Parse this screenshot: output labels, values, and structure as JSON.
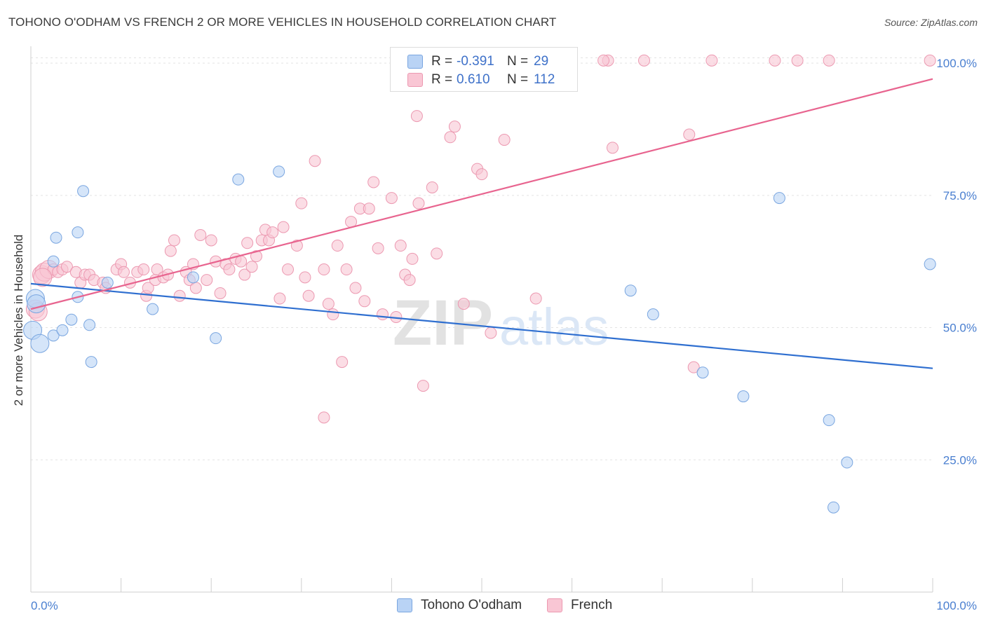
{
  "header": {
    "title": "TOHONO O'ODHAM VS FRENCH 2 OR MORE VEHICLES IN HOUSEHOLD CORRELATION CHART",
    "source": "Source: ZipAtlas.com"
  },
  "legend": {
    "rows": [
      {
        "r_key": "R =",
        "r_value": "-0.391",
        "n_key": "N =",
        "n_value": "29",
        "color": "#b9d3f5"
      },
      {
        "r_key": "R =",
        "r_value": "0.610",
        "n_key": "N =",
        "n_value": "112",
        "color": "#f9c6d4"
      }
    ]
  },
  "bottom_legend": [
    {
      "label": "Tohono O'odham",
      "color": "#b9d3f5"
    },
    {
      "label": "French",
      "color": "#f9c6d4"
    }
  ],
  "watermark": {
    "zip": "ZIP",
    "atlas": "atlas"
  },
  "chart_data": {
    "type": "scatter",
    "title": "TOHONO O'ODHAM VS FRENCH 2 OR MORE VEHICLES IN HOUSEHOLD CORRELATION CHART",
    "xlabel": "",
    "ylabel": "2 or more Vehicles in Household",
    "xlim": [
      0,
      100
    ],
    "ylim": [
      0,
      102
    ],
    "x_tick_labels": [
      "0.0%",
      "100.0%"
    ],
    "y_ticks": [
      25,
      50,
      75,
      100
    ],
    "y_tick_labels": [
      "25.0%",
      "50.0%",
      "75.0%",
      "100.0%"
    ],
    "grid": true,
    "legend_position": "top-center",
    "series": [
      {
        "name": "Tohono O'odham",
        "color": "#b9d3f5",
        "stroke": "#7aa6e0",
        "trend_color": "#2f6fd0",
        "trend": {
          "x": [
            0,
            100
          ],
          "y": [
            58.3,
            42.3
          ]
        },
        "points": [
          [
            0.2,
            49.5
          ],
          [
            0.5,
            55.5
          ],
          [
            1.0,
            47
          ],
          [
            2.5,
            48.5
          ],
          [
            2.5,
            62.5
          ],
          [
            2.8,
            67
          ],
          [
            3.5,
            49.5
          ],
          [
            4.5,
            51.5
          ],
          [
            5.2,
            55.8
          ],
          [
            5.2,
            68
          ],
          [
            5.8,
            75.8
          ],
          [
            6.5,
            50.5
          ],
          [
            6.7,
            43.5
          ],
          [
            8.5,
            58.5
          ],
          [
            13.5,
            53.5
          ],
          [
            18.0,
            59.5
          ],
          [
            20.5,
            48
          ],
          [
            23.0,
            78
          ],
          [
            27.5,
            79.5
          ],
          [
            83.0,
            74.5
          ],
          [
            99.7,
            62
          ],
          [
            66.5,
            57
          ],
          [
            69.0,
            52.5
          ],
          [
            74.5,
            41.5
          ],
          [
            79.0,
            37
          ],
          [
            88.5,
            32.5
          ],
          [
            90.5,
            24.5
          ],
          [
            89.0,
            16
          ],
          [
            0.6,
            54.5
          ]
        ]
      },
      {
        "name": "French",
        "color": "#f9c6d4",
        "stroke": "#ec99b1",
        "trend_color": "#e8648f",
        "trend": {
          "x": [
            0,
            100
          ],
          "y": [
            53.5,
            97
          ]
        },
        "points": [
          [
            0.5,
            53.5
          ],
          [
            0.8,
            53
          ],
          [
            1.2,
            60
          ],
          [
            1.5,
            60.5
          ],
          [
            2.0,
            61
          ],
          [
            2.5,
            61
          ],
          [
            3.0,
            60.5
          ],
          [
            3.5,
            61
          ],
          [
            4.0,
            61.5
          ],
          [
            5.0,
            60.5
          ],
          [
            5.5,
            58.5
          ],
          [
            6.0,
            60
          ],
          [
            6.5,
            60
          ],
          [
            7.0,
            59
          ],
          [
            8.0,
            58.5
          ],
          [
            8.3,
            57.5
          ],
          [
            9.5,
            61
          ],
          [
            10.0,
            62
          ],
          [
            10.3,
            60.5
          ],
          [
            11.0,
            58.5
          ],
          [
            11.8,
            60.5
          ],
          [
            12.5,
            61
          ],
          [
            12.8,
            56
          ],
          [
            13.0,
            57.5
          ],
          [
            13.8,
            59
          ],
          [
            14.0,
            61
          ],
          [
            14.7,
            59.5
          ],
          [
            15.2,
            60
          ],
          [
            15.5,
            64.5
          ],
          [
            15.9,
            66.5
          ],
          [
            16.5,
            56
          ],
          [
            17.2,
            60.5
          ],
          [
            17.6,
            59
          ],
          [
            18.0,
            62
          ],
          [
            18.3,
            57.5
          ],
          [
            18.8,
            67.5
          ],
          [
            19.5,
            59
          ],
          [
            20.0,
            66.5
          ],
          [
            20.5,
            62.5
          ],
          [
            21.0,
            56.5
          ],
          [
            21.6,
            62
          ],
          [
            22.0,
            61
          ],
          [
            22.7,
            63
          ],
          [
            23.3,
            62.5
          ],
          [
            23.7,
            60
          ],
          [
            24.0,
            66
          ],
          [
            24.5,
            61.5
          ],
          [
            25.0,
            63.5
          ],
          [
            25.6,
            66.5
          ],
          [
            26.0,
            68.5
          ],
          [
            26.4,
            66.5
          ],
          [
            26.8,
            68
          ],
          [
            27.6,
            55.5
          ],
          [
            28.0,
            69
          ],
          [
            28.5,
            61
          ],
          [
            29.5,
            65.5
          ],
          [
            30.0,
            73.5
          ],
          [
            30.4,
            59.5
          ],
          [
            30.8,
            56
          ],
          [
            31.5,
            81.5
          ],
          [
            32.5,
            61
          ],
          [
            33.0,
            54.5
          ],
          [
            33.5,
            52.5
          ],
          [
            34.0,
            65.5
          ],
          [
            34.5,
            43.5
          ],
          [
            35.0,
            61
          ],
          [
            35.5,
            70
          ],
          [
            36.0,
            57.5
          ],
          [
            36.5,
            72.5
          ],
          [
            37.0,
            55
          ],
          [
            37.5,
            72.5
          ],
          [
            38.0,
            77.5
          ],
          [
            38.5,
            65
          ],
          [
            39.0,
            52.5
          ],
          [
            40.0,
            74.5
          ],
          [
            40.5,
            52
          ],
          [
            41.0,
            65.5
          ],
          [
            41.5,
            60
          ],
          [
            42.0,
            59
          ],
          [
            42.3,
            63
          ],
          [
            42.8,
            90
          ],
          [
            43.0,
            73.5
          ],
          [
            43.5,
            39
          ],
          [
            44.5,
            76.5
          ],
          [
            45.0,
            64
          ],
          [
            46.5,
            86
          ],
          [
            47.0,
            88
          ],
          [
            48.0,
            54.5
          ],
          [
            49.5,
            80
          ],
          [
            50.0,
            79
          ],
          [
            51.0,
            49
          ],
          [
            52.5,
            85.5
          ],
          [
            56.0,
            55.5
          ],
          [
            64.5,
            84
          ],
          [
            73.0,
            86.5
          ],
          [
            73.5,
            42.5
          ],
          [
            45.8,
            100.5
          ],
          [
            47.0,
            100.5
          ],
          [
            49.5,
            100.5
          ],
          [
            53.0,
            100.5
          ],
          [
            54.0,
            100.5
          ],
          [
            59.5,
            100.5
          ],
          [
            64.0,
            100.5
          ],
          [
            68.0,
            100.5
          ],
          [
            75.5,
            100.5
          ],
          [
            82.5,
            100.5
          ],
          [
            85.0,
            100.5
          ],
          [
            99.7,
            100.5
          ],
          [
            32.5,
            33
          ],
          [
            63.5,
            100.5
          ],
          [
            88.5,
            100.5
          ],
          [
            1.3,
            59.5
          ]
        ]
      }
    ]
  }
}
